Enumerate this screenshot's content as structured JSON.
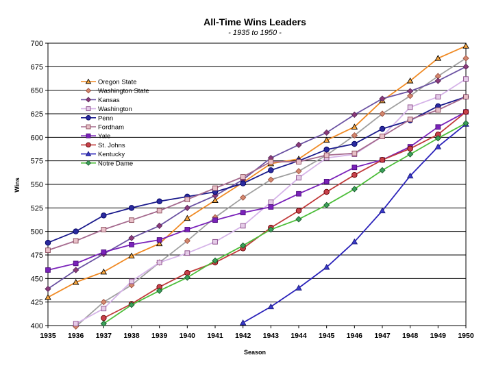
{
  "chart_data": {
    "type": "line",
    "title": "All-Time Wins Leaders",
    "subtitle": "- 1935 to 1950 -",
    "xlabel": "Season",
    "ylabel": "Wins",
    "x": [
      1935,
      1936,
      1937,
      1938,
      1939,
      1940,
      1941,
      1942,
      1943,
      1944,
      1945,
      1946,
      1947,
      1948,
      1949,
      1950
    ],
    "ylim": [
      400,
      700
    ],
    "yticks": [
      400,
      425,
      450,
      475,
      500,
      525,
      550,
      575,
      600,
      625,
      650,
      675,
      700
    ],
    "grid": "horizontal",
    "legend_position": "left-upper",
    "series": [
      {
        "name": "Oregon State",
        "color": "#F08A24",
        "marker": "triangle",
        "marker_fill": "#F7A640",
        "marker_stroke": "#000000",
        "values": [
          430,
          446,
          457,
          474,
          487,
          514,
          533,
          552,
          572,
          577,
          597,
          611,
          639,
          660,
          684,
          697
        ]
      },
      {
        "name": "Washington State",
        "color": "#A0A0A0",
        "marker": "diamond",
        "marker_fill": "#D2886E",
        "marker_stroke": "#A05040",
        "values": [
          null,
          399,
          425,
          443,
          467,
          490,
          515,
          536,
          555,
          564,
          581,
          602,
          625,
          644,
          665,
          684
        ]
      },
      {
        "name": "Kansas",
        "color": "#6B52A2",
        "marker": "diamond",
        "marker_fill": "#8B3A7A",
        "marker_stroke": "#5A2A5A",
        "values": [
          439,
          459,
          476,
          493,
          506,
          525,
          538,
          555,
          578,
          592,
          605,
          624,
          641,
          649,
          660,
          675
        ]
      },
      {
        "name": "Washington",
        "color": "#D5B3E8",
        "marker": "square",
        "marker_fill": "#E5CCE8",
        "marker_stroke": "#8A4A8A",
        "values": [
          null,
          402,
          418,
          447,
          467,
          477,
          489,
          506,
          531,
          557,
          578,
          582,
          601,
          632,
          643,
          662
        ]
      },
      {
        "name": "Penn",
        "color": "#1A1A8C",
        "marker": "circle",
        "marker_fill": "#2A2A9E",
        "marker_stroke": "#000060",
        "values": [
          488,
          500,
          517,
          525,
          532,
          537,
          542,
          551,
          565,
          575,
          587,
          593,
          609,
          618,
          633,
          643
        ]
      },
      {
        "name": "Fordham",
        "color": "#A56A8E",
        "marker": "square",
        "marker_fill": "#E8C0C8",
        "marker_stroke": "#8A4A5A",
        "values": [
          480,
          490,
          502,
          512,
          522,
          534,
          546,
          558,
          574,
          574,
          581,
          583,
          601,
          619,
          629,
          643
        ]
      },
      {
        "name": "Yale",
        "color": "#7A22BA",
        "marker": "square",
        "marker_fill": "#7A22BA",
        "marker_stroke": "#4A0A7A",
        "values": [
          459,
          466,
          478,
          486,
          491,
          502,
          512,
          520,
          526,
          540,
          553,
          568,
          576,
          590,
          611,
          627
        ]
      },
      {
        "name": "St. Johns",
        "color": "#C03A3A",
        "marker": "circle",
        "marker_fill": "#C8404A",
        "marker_stroke": "#600000",
        "values": [
          null,
          null,
          408,
          423,
          441,
          456,
          467,
          482,
          504,
          522,
          542,
          560,
          576,
          588,
          603,
          627
        ]
      },
      {
        "name": "Kentucky",
        "color": "#2A22BA",
        "marker": "triangle",
        "marker_fill": "#3A3ACA",
        "marker_stroke": "#1A1A7A",
        "values": [
          null,
          null,
          null,
          null,
          null,
          null,
          null,
          403,
          420,
          440,
          462,
          489,
          522,
          559,
          590,
          614
        ]
      },
      {
        "name": "Notre Dame",
        "color": "#4DBE3A",
        "marker": "diamond",
        "marker_fill": "#3AA05A",
        "marker_stroke": "#1A5A2A",
        "values": [
          null,
          null,
          402,
          422,
          437,
          451,
          469,
          485,
          502,
          513,
          528,
          545,
          565,
          582,
          599,
          615
        ]
      }
    ]
  }
}
